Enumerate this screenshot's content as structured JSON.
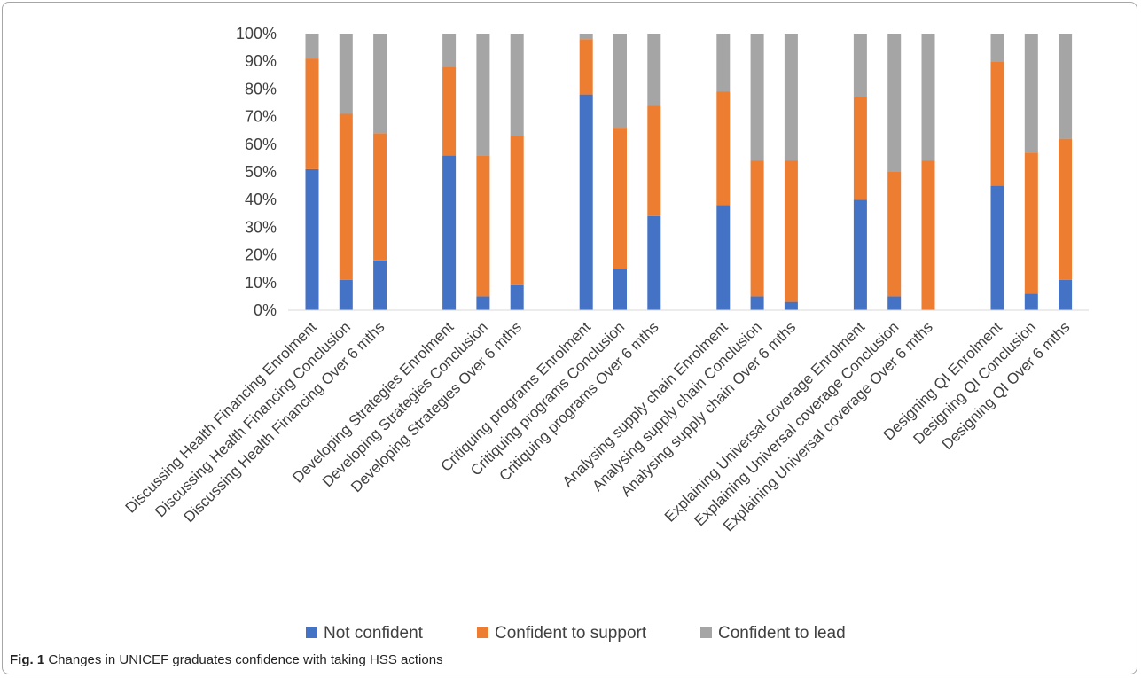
{
  "caption": {
    "label": "Fig. 1",
    "text": "Changes in UNICEF graduates confidence with taking HSS actions"
  },
  "colors": {
    "not_confident": "#4472C4",
    "support": "#ED7D31",
    "lead": "#A5A5A5",
    "axis_text": "#404040",
    "gridline": "#d9d9d9"
  },
  "chart_data": {
    "type": "bar",
    "stacked": true,
    "percent": true,
    "title": "",
    "xlabel": "",
    "ylabel": "",
    "ylim": [
      0,
      100
    ],
    "y_ticks": [
      "0%",
      "10%",
      "20%",
      "30%",
      "40%",
      "50%",
      "60%",
      "70%",
      "80%",
      "90%",
      "100%"
    ],
    "legend_position": "bottom",
    "grid": false,
    "groups": [
      [
        "Discussing Health Financing Enrolment",
        "Discussing Health Financing Conclusion",
        "Discussing Health Financing Over 6 mths"
      ],
      [
        "Developing Strategies Enrolment",
        "Developing Strategies Conclusion",
        "Developing Strategies Over 6 mths"
      ],
      [
        "Critiquing programs Enrolment",
        "Critiquing programs Conclusion",
        "Critiquing programs Over 6 mths"
      ],
      [
        "Analysing supply chain Enrolment",
        "Analysing supply chain Conclusion",
        "Analysing supply chain Over 6 mths"
      ],
      [
        "Explaining Universal coverage Enrolment",
        "Explaining Universal coverage Conclusion",
        "Explaining Universal coverage Over 6 mths"
      ],
      [
        "Designing QI Enrolment",
        "Designing QI Conclusion",
        "Designing QI Over 6 mths"
      ]
    ],
    "series": [
      {
        "name": "Not confident",
        "values": [
          51,
          11,
          18,
          56,
          5,
          9,
          78,
          15,
          34,
          38,
          5,
          3,
          40,
          5,
          0,
          45,
          6,
          11
        ]
      },
      {
        "name": "Confident to support",
        "values": [
          40,
          60,
          46,
          32,
          51,
          54,
          20,
          51,
          40,
          41,
          49,
          51,
          37,
          45,
          54,
          45,
          51,
          51
        ]
      },
      {
        "name": "Confident to lead",
        "values": [
          9,
          29,
          36,
          12,
          44,
          37,
          2,
          34,
          26,
          21,
          46,
          46,
          23,
          50,
          46,
          10,
          43,
          38
        ]
      }
    ]
  }
}
